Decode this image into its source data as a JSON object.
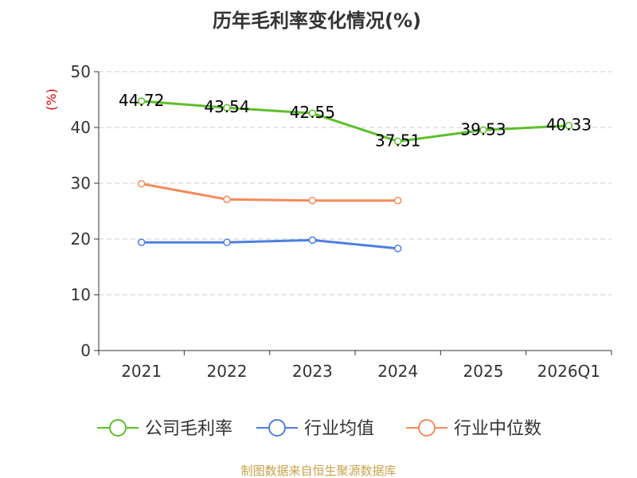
{
  "chart_data": {
    "type": "line",
    "title": "历年毛利率变化情况(%)",
    "ylabel": "(%)",
    "xlabel": "",
    "categories": [
      "2021",
      "2022",
      "2023",
      "2024",
      "2025",
      "2026Q1"
    ],
    "ylim": [
      0,
      50
    ],
    "yticks": [
      0,
      10,
      20,
      30,
      40,
      50
    ],
    "grid": true,
    "legend_position": "bottom",
    "series": [
      {
        "name": "公司毛利率",
        "color": "#5cc02a",
        "values": [
          44.72,
          43.54,
          42.55,
          37.51,
          39.53,
          40.33
        ],
        "labels": [
          "44.72",
          "43.54",
          "42.55",
          "37.51",
          "39.53",
          "40.33"
        ]
      },
      {
        "name": "行业均值",
        "color": "#4f7fe0",
        "values": [
          19.4,
          19.4,
          19.8,
          18.3,
          null,
          null
        ]
      },
      {
        "name": "行业中位数",
        "color": "#f58a5a",
        "values": [
          29.9,
          27.1,
          26.9,
          26.9,
          null,
          null
        ]
      }
    ],
    "source": "制图数据来自恒生聚源数据库"
  }
}
